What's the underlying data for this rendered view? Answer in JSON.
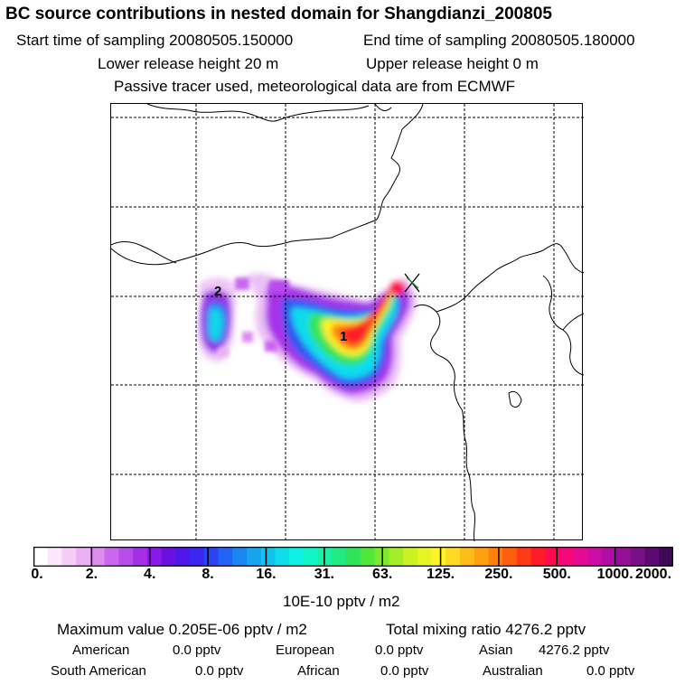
{
  "header": {
    "title": "BC  source contributions in nested domain for Shangdianzi_200805",
    "start_label": "Start time of sampling 20080505.150000",
    "end_label": "End time of sampling 20080505.180000",
    "lower_release": "Lower release height   20 m",
    "upper_release": "Upper release height    0 m",
    "tracer_note": "Passive tracer used, meteorological data are from ECMWF"
  },
  "map": {
    "markers": [
      {
        "label": "1"
      },
      {
        "label": "2"
      }
    ],
    "colors": {
      "coastline": "#000000",
      "grid": "#000000",
      "receptor": "#000000"
    }
  },
  "colorbar": {
    "ticks": [
      "0.",
      "2.",
      "4.",
      "8.",
      "16.",
      "31.",
      "63.",
      "125.",
      "250.",
      "500.",
      "1000.",
      "2000."
    ],
    "unit": "10E-10 pptv / m2",
    "colors": [
      "#ffffff",
      "#fbe6fb",
      "#f4ccf4",
      "#eab0f3",
      "#dd8cf0",
      "#cc66ee",
      "#b84bec",
      "#a62ee8",
      "#8a18e6",
      "#6a10e0",
      "#5018e8",
      "#3a28f0",
      "#2a44f4",
      "#1f66f4",
      "#1a86f0",
      "#16a4ee",
      "#12c2ee",
      "#10dcec",
      "#0ef2e6",
      "#10f6c8",
      "#18f0a4",
      "#22ea80",
      "#30e45a",
      "#50e63a",
      "#7aea2e",
      "#a2ee26",
      "#c8f224",
      "#e6f424",
      "#fff228",
      "#ffd820",
      "#ffbc18",
      "#ffa012",
      "#ff800e",
      "#ff5e0e",
      "#ff3a14",
      "#ff1a28",
      "#ff0a4e",
      "#f4087a",
      "#e40a96",
      "#cc0ca4",
      "#b00ea8",
      "#941098",
      "#781088",
      "#5c0a72",
      "#400858"
    ]
  },
  "summary": {
    "max_value": "Maximum value  0.205E-06 pptv / m2",
    "total_mixing": "Total mixing ratio      4276.2 pptv",
    "american_label": "American",
    "american_value": "0.0 pptv",
    "european_label": "European",
    "european_value": "0.0 pptv",
    "asian_label": "Asian",
    "asian_value": "4276.2 pptv",
    "south_american_label": "South American",
    "south_american_value": "0.0 pptv",
    "african_label": "African",
    "african_value": "0.0 pptv",
    "australian_label": "Australian",
    "australian_value": "0.0 pptv"
  }
}
